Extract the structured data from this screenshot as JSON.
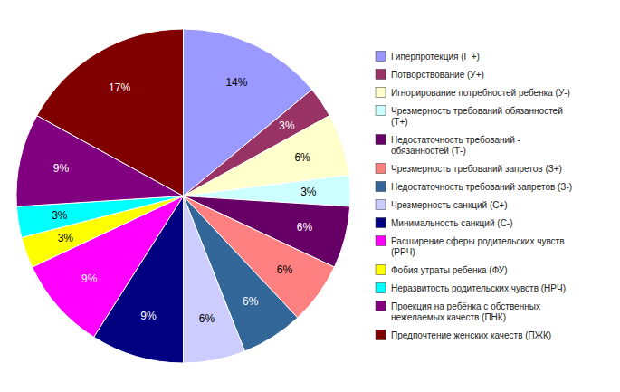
{
  "chart_data": {
    "type": "pie",
    "categories": [
      "Гиперпротекция (Г +)",
      "Потворствование (У+)",
      "Игнорирование потребностей ребенка (У-)",
      "Чрезмерность требований обязанностей\n(Т+)",
      "Недостаточность требований -\nобязанностей (Т-)",
      "Чрезмерность требований запретов (З+)",
      "Недостаточность требований запретов (З-)",
      "Чрезмерность санкций (С+)",
      "Минимальность санкций (С-)",
      "Расширение сферы родительских чувств\n(РРЧ)",
      "Фобия утраты ребенка (ФУ)",
      "Неразвитость родительских чувств (НРЧ)",
      "Проекция на ребёнка с обственных\nнежелаемых качеств (ПНК)",
      "Предпочтение женских качеств (ПЖК)"
    ],
    "values": [
      14,
      3,
      6,
      3,
      6,
      6,
      6,
      6,
      9,
      9,
      3,
      3,
      9,
      17
    ],
    "value_labels": [
      "14%",
      "3%",
      "6%",
      "3%",
      "6%",
      "6%",
      "6%",
      "6%",
      "9%",
      "9%",
      "3%",
      "3%",
      "9%",
      "17%"
    ],
    "colors": [
      "#9999FF",
      "#993366",
      "#FFFFCC",
      "#CCFFFF",
      "#660066",
      "#FF8080",
      "#336699",
      "#CCCCFF",
      "#000080",
      "#FF00FF",
      "#FFFF00",
      "#00FFFF",
      "#800080",
      "#800000"
    ],
    "data_labels": true,
    "legend": "right"
  }
}
